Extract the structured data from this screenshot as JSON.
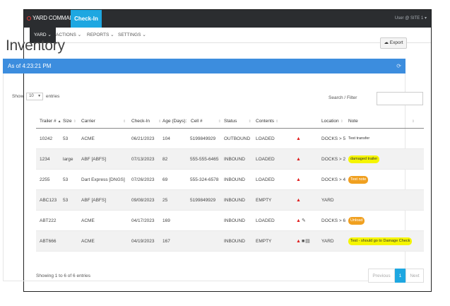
{
  "topbar": {
    "brand": "YARD COMMANDER",
    "checkin_tab": "Check-In",
    "user": "User @ SITE 1"
  },
  "nav": {
    "items": [
      {
        "label": "YARD",
        "active": true
      },
      {
        "label": "ACTIONS",
        "active": false
      },
      {
        "label": "REPORTS",
        "active": false
      },
      {
        "label": "SETTINGS",
        "active": false
      }
    ]
  },
  "page": {
    "title": "Inventory",
    "export_label": "Export",
    "as_of": "As of 4:23:21 PM"
  },
  "table_controls": {
    "show_label": "Show",
    "entries_value": "10",
    "entries_label": "entries",
    "search_label": "Search / Filter",
    "search_value": ""
  },
  "table": {
    "headers": {
      "trailer": "Trailer #",
      "size": "Size",
      "carrier": "Carrier",
      "checkin": "Check-In",
      "age": "Age (Days):",
      "cell": "Cell #",
      "status": "Status",
      "contents": "Contents",
      "location": "Location",
      "note": "Note"
    },
    "rows": [
      {
        "trailer": "10242",
        "size": "53",
        "carrier": "ACME",
        "checkin": "06/21/2023",
        "age": "104",
        "cell": "5199849929",
        "status": "OUTBOUND",
        "contents": "LOADED",
        "icons": [
          "bell-icon"
        ],
        "location": "DOCKS > 5",
        "note": "Test transfer",
        "note_style": "plain"
      },
      {
        "trailer": "1234",
        "size": "large",
        "carrier": "ABF [ABFS]",
        "checkin": "07/13/2023",
        "age": "82",
        "cell": "555-555-6465",
        "status": "INBOUND",
        "contents": "LOADED",
        "icons": [
          "bell-icon"
        ],
        "location": "DOCKS > 2",
        "note": "damaged trailer",
        "note_style": "yellow"
      },
      {
        "trailer": "2255",
        "size": "53",
        "carrier": "Dart Express [DNGS]",
        "checkin": "07/26/2023",
        "age": "69",
        "cell": "555-324-6578",
        "status": "INBOUND",
        "contents": "LOADED",
        "icons": [
          "bell-icon"
        ],
        "location": "DOCKS > 4",
        "note": "Test note",
        "note_style": "orange"
      },
      {
        "trailer": "ABC123",
        "size": "53",
        "carrier": "ABF [ABFS]",
        "checkin": "09/08/2023",
        "age": "25",
        "cell": "5199849929",
        "status": "INBOUND",
        "contents": "EMPTY",
        "icons": [
          "bell-icon"
        ],
        "location": "YARD",
        "note": "",
        "note_style": "plain"
      },
      {
        "trailer": "ABT222",
        "size": "",
        "carrier": "ACME",
        "checkin": "04/17/2023",
        "age": "169",
        "cell": "",
        "status": "INBOUND",
        "contents": "LOADED",
        "icons": [
          "bell-icon",
          "paperclip-icon"
        ],
        "location": "DOCKS > 6",
        "note": "Unload",
        "note_style": "orange"
      },
      {
        "trailer": "ABT666",
        "size": "",
        "carrier": "ACME",
        "checkin": "04/19/2023",
        "age": "167",
        "cell": "",
        "status": "INBOUND",
        "contents": "EMPTY",
        "icons": [
          "bell-icon",
          "truck-icon",
          "document-icon"
        ],
        "location": "YARD",
        "note": "Test - should go to Damage Check",
        "note_style": "yellow"
      }
    ]
  },
  "footer": {
    "info": "Showing 1 to 6 of 6 entries",
    "previous": "Previous",
    "current_page": "1",
    "next": "Next"
  }
}
